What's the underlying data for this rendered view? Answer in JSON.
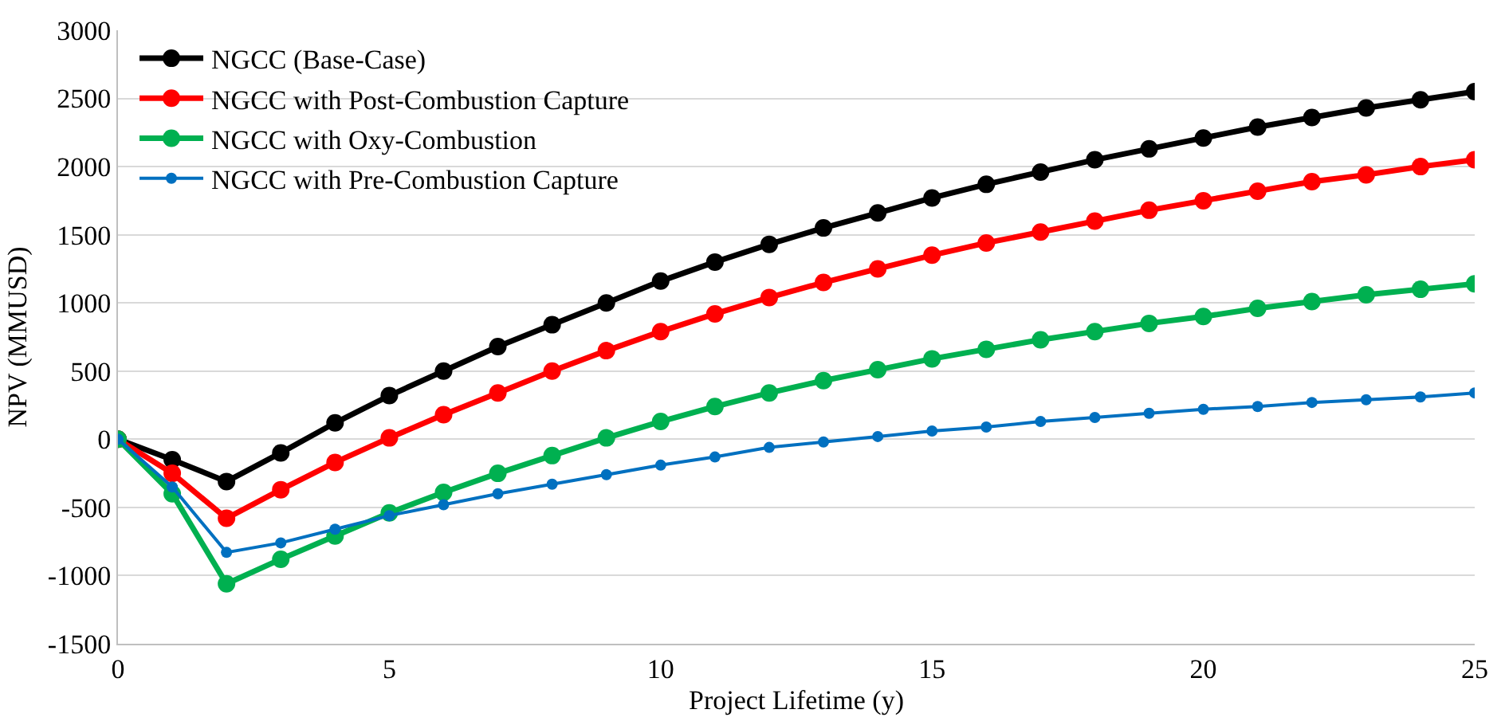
{
  "chart_data": {
    "type": "line",
    "xlabel": "Project Lifetime (y)",
    "ylabel": "NPV (MMUSD)",
    "x": [
      0,
      1,
      2,
      3,
      4,
      5,
      6,
      7,
      8,
      9,
      10,
      11,
      12,
      13,
      14,
      15,
      16,
      17,
      18,
      19,
      20,
      21,
      22,
      23,
      24,
      25
    ],
    "series": [
      {
        "name": "NGCC (Base-Case)",
        "color": "#000000",
        "values": [
          0,
          -150,
          -310,
          -100,
          120,
          320,
          500,
          680,
          840,
          1000,
          1160,
          1300,
          1430,
          1550,
          1660,
          1770,
          1870,
          1960,
          2050,
          2130,
          2210,
          2290,
          2360,
          2430,
          2490,
          2550
        ]
      },
      {
        "name": "NGCC with Post-Combustion Capture",
        "color": "#ff0000",
        "values": [
          0,
          -250,
          -580,
          -370,
          -170,
          10,
          180,
          340,
          500,
          650,
          790,
          920,
          1040,
          1150,
          1250,
          1350,
          1440,
          1520,
          1600,
          1680,
          1750,
          1820,
          1890,
          1940,
          2000,
          2050
        ]
      },
      {
        "name": "NGCC with Oxy-Combustion",
        "color": "#00b050",
        "values": [
          0,
          -400,
          -1060,
          -880,
          -710,
          -540,
          -390,
          -250,
          -120,
          10,
          130,
          240,
          340,
          430,
          510,
          590,
          660,
          730,
          790,
          850,
          900,
          960,
          1010,
          1060,
          1100,
          1140
        ]
      },
      {
        "name": "NGCC with Pre-Combustion Capture",
        "color": "#0070c0",
        "values": [
          0,
          -350,
          -830,
          -760,
          -660,
          -560,
          -480,
          -400,
          -330,
          -260,
          -190,
          -130,
          -60,
          -20,
          20,
          60,
          90,
          130,
          160,
          190,
          220,
          240,
          270,
          290,
          310,
          340
        ]
      }
    ],
    "xlim": [
      0,
      25
    ],
    "xticks": [
      0,
      5,
      10,
      15,
      20,
      25
    ],
    "ylim": [
      -1500,
      3000
    ],
    "yticks": [
      -1500,
      -1000,
      -500,
      0,
      500,
      1000,
      1500,
      2000,
      2500,
      3000
    ],
    "grid": "y",
    "legend": "top left",
    "marker": "circle",
    "line_style": "solid"
  }
}
